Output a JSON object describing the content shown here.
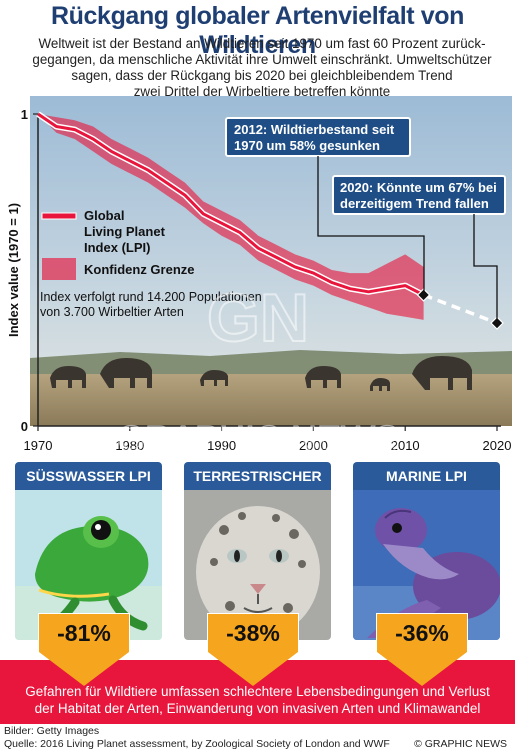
{
  "header": {
    "title": "Rückgang globaler Artenvielfalt von Wildtieren",
    "subtitle_lines": [
      "Weltweit ist der Bestand an Wildtieren seit 1970 um fast 60 Prozent zurück-",
      "gegangen, da menschliche Aktivität ihre Umwelt einschränkt. Umweltschützer",
      "sagen, dass der Rückgang bis 2020 bei gleichbleibendem Trend",
      "zwei Drittel der Wirbeltiere betreffen könnte"
    ]
  },
  "chart_data": {
    "type": "line",
    "ylabel": "Index value (1970 = 1)",
    "xlabel": "",
    "xlim": [
      1970,
      2020
    ],
    "ylim": [
      0,
      1
    ],
    "x_ticks": [
      "1970",
      "1980",
      "1990",
      "2000",
      "2010",
      "2020"
    ],
    "y_ticks": [
      "0",
      "1"
    ],
    "series": [
      {
        "name": "Global Living Planet Index (LPI)",
        "color": "#e8163c",
        "x": [
          1970,
          1972,
          1974,
          1976,
          1978,
          1980,
          1982,
          1984,
          1986,
          1988,
          1990,
          1992,
          1994,
          1996,
          1998,
          2000,
          2002,
          2004,
          2006,
          2008,
          2010,
          2012
        ],
        "values": [
          1.0,
          0.96,
          0.95,
          0.92,
          0.88,
          0.85,
          0.82,
          0.78,
          0.74,
          0.68,
          0.65,
          0.62,
          0.57,
          0.54,
          0.51,
          0.49,
          0.46,
          0.44,
          0.43,
          0.44,
          0.45,
          0.42
        ]
      },
      {
        "name": "Konfidenz Grenze",
        "color": "#e8163c",
        "x": [
          1970,
          1972,
          1974,
          1976,
          1978,
          1980,
          1982,
          1984,
          1986,
          1988,
          1990,
          1992,
          1994,
          1996,
          1998,
          2000,
          2002,
          2004,
          2006,
          2008,
          2010,
          2012
        ],
        "upper": [
          1.0,
          0.99,
          0.98,
          0.96,
          0.92,
          0.89,
          0.86,
          0.82,
          0.78,
          0.72,
          0.69,
          0.66,
          0.61,
          0.58,
          0.55,
          0.53,
          0.5,
          0.49,
          0.49,
          0.52,
          0.55,
          0.51
        ],
        "lower": [
          1.0,
          0.94,
          0.92,
          0.88,
          0.84,
          0.81,
          0.78,
          0.74,
          0.7,
          0.65,
          0.61,
          0.58,
          0.53,
          0.5,
          0.47,
          0.45,
          0.42,
          0.4,
          0.38,
          0.36,
          0.35,
          0.34
        ]
      },
      {
        "name": "",
        "style": "dashed",
        "color": "#ffffff",
        "x": [
          2012,
          2020
        ],
        "values": [
          0.42,
          0.33
        ]
      }
    ],
    "legend": {
      "placement": "left-middle",
      "items": [
        "Global Living Planet Index (LPI)",
        "Konfidenz Grenze"
      ]
    },
    "annotations": [
      {
        "x": 2012,
        "y": 0.42,
        "text_lines": [
          "2012: Wildtierbestand seit",
          "1970 um 58% gesunken"
        ]
      },
      {
        "x": 2020,
        "y": 0.33,
        "text_lines": [
          "2020: Könnte um 67% bei",
          "derzeitigem Trend fallen"
        ]
      }
    ],
    "note_lines": [
      "Index verfolgt rund 14.200 Populationen",
      "von 3.700 Wirbeltier Arten"
    ]
  },
  "legend_lines": {
    "lpi": [
      "Global",
      "Living Planet",
      "Index (LPI)"
    ],
    "confidence": [
      "Konfidenz Grenze"
    ]
  },
  "watermark": {
    "text": "GRAPHIC NEWS",
    "logo": "GN"
  },
  "panels": [
    {
      "label": "SÜSSWASSER LPI",
      "value": "-81%",
      "icon": "frog-photo"
    },
    {
      "label": "TERRESTRISCHER LPI",
      "value": "-38%",
      "icon": "snow-leopard-photo"
    },
    {
      "label": "MARINE LPI",
      "value": "-36%",
      "icon": "sea-turtle-photo"
    }
  ],
  "colors": {
    "accent": "#e8163c",
    "navy": "#1f3f73",
    "panel_blue": "#2a5a9a",
    "arrow_orange": "#f5a51e"
  },
  "footer": {
    "lines": [
      "Gefahren für Wildtiere umfassen schlechtere Lebensbedingungen und Verlust",
      "der Habitat der Arten, Einwanderung von invasiven Arten und Klimawandel"
    ]
  },
  "credits": {
    "images": "Bilder: Getty Images",
    "source": "Quelle: 2016 Living Planet assessment, by Zoological Society of London and WWF",
    "brand": "© GRAPHIC NEWS"
  }
}
